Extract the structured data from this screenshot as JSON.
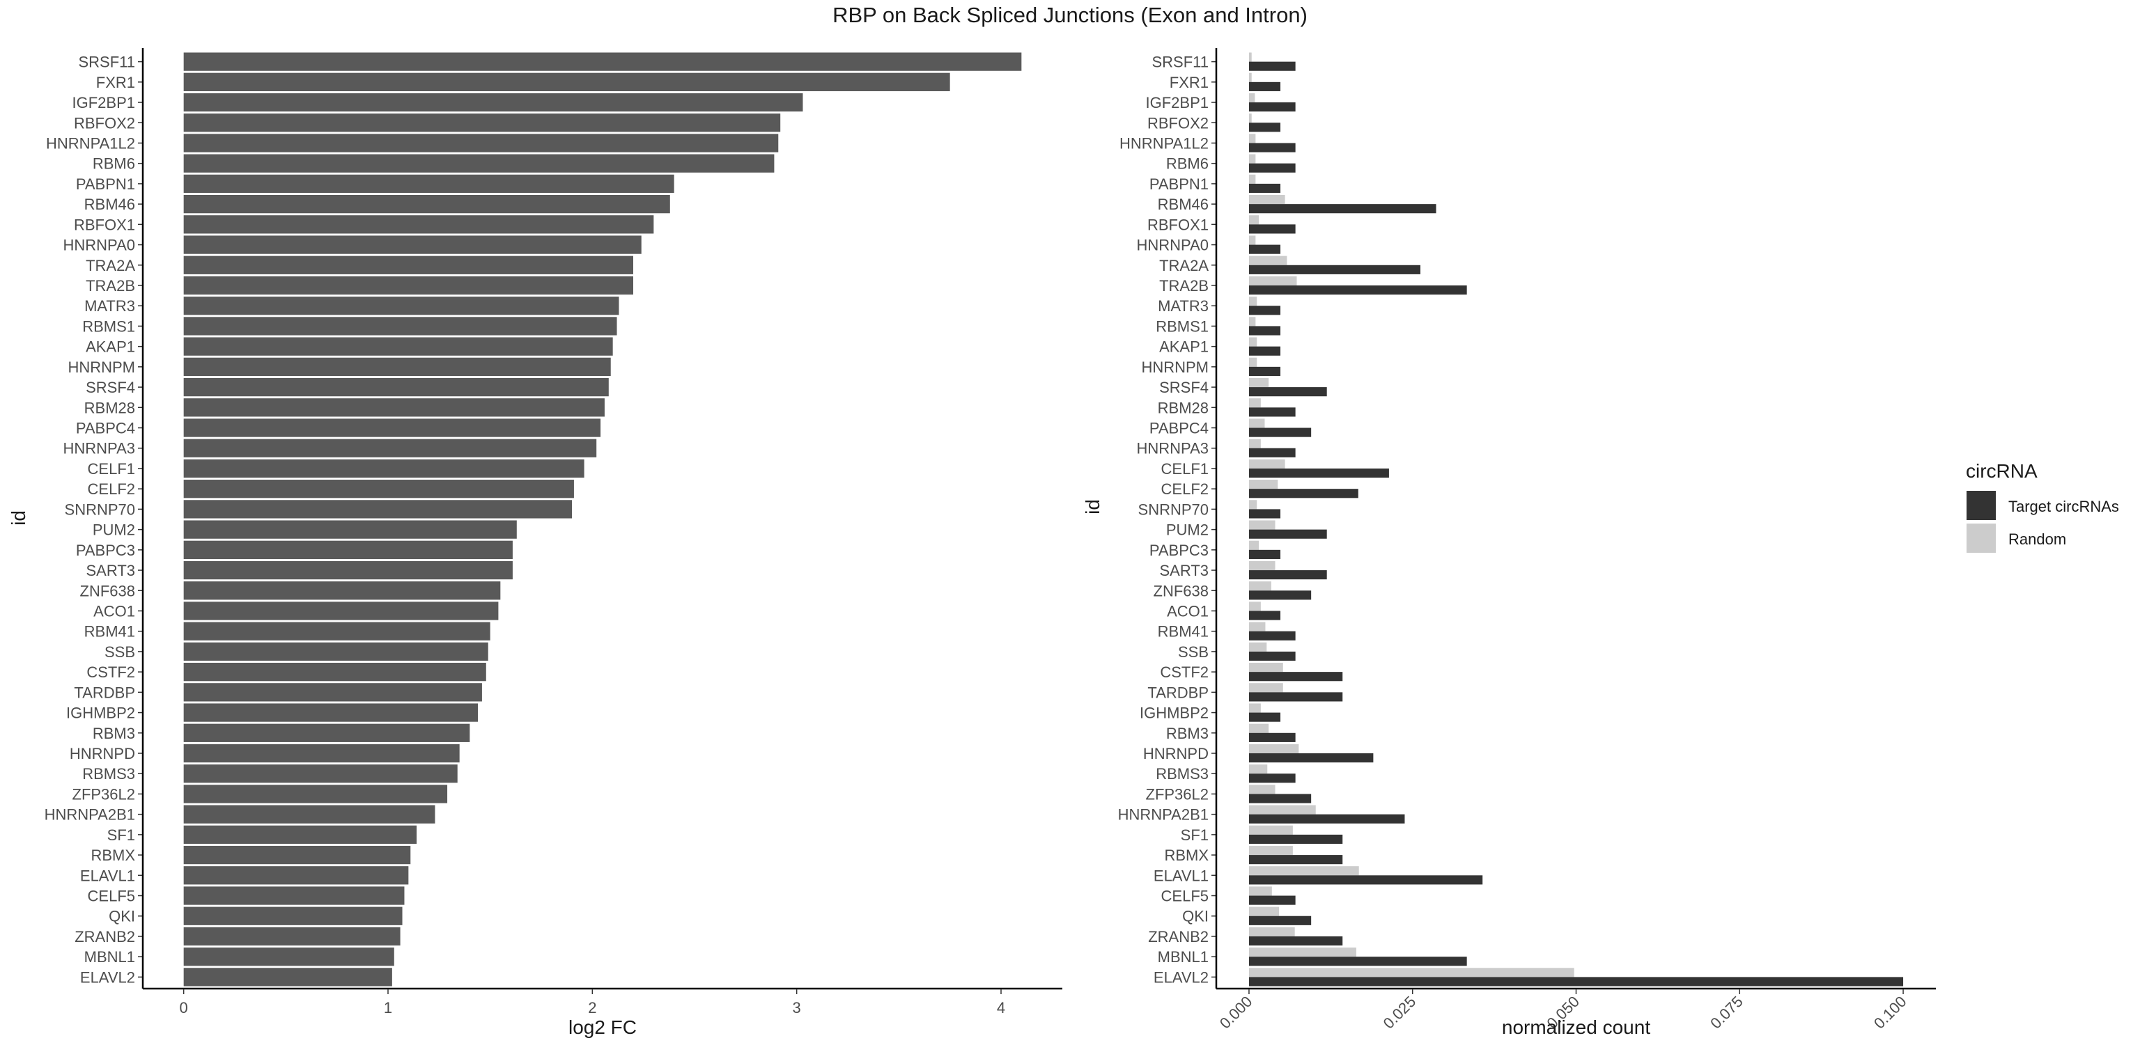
{
  "title": "RBP on Back Spliced Junctions (Exon and Intron)",
  "colors": {
    "bar_left": "#595959",
    "target": "#333333",
    "random": "#cccccc",
    "axis": "#000000",
    "text": "#4d4d4d"
  },
  "chart_data": [
    {
      "type": "bar",
      "orientation": "horizontal",
      "xlabel": "log2 FC",
      "ylabel": "id",
      "xlim": [
        -0.2,
        4.3
      ],
      "xticks": [
        "0",
        "1",
        "2",
        "3",
        "4"
      ],
      "categories": [
        "SRSF11",
        "FXR1",
        "IGF2BP1",
        "RBFOX2",
        "HNRNPA1L2",
        "RBM6",
        "PABPN1",
        "RBM46",
        "RBFOX1",
        "HNRNPA0",
        "TRA2A",
        "TRA2B",
        "MATR3",
        "RBMS1",
        "AKAP1",
        "HNRNPM",
        "SRSF4",
        "RBM28",
        "PABPC4",
        "HNRNPA3",
        "CELF1",
        "CELF2",
        "SNRNP70",
        "PUM2",
        "PABPC3",
        "SART3",
        "ZNF638",
        "ACO1",
        "RBM41",
        "SSB",
        "CSTF2",
        "TARDBP",
        "IGHMBP2",
        "RBM3",
        "HNRNPD",
        "RBMS3",
        "ZFP36L2",
        "HNRNPA2B1",
        "SF1",
        "RBMX",
        "ELAVL1",
        "CELF5",
        "QKI",
        "ZRANB2",
        "MBNL1",
        "ELAVL2"
      ],
      "values": [
        4.1,
        3.75,
        3.03,
        2.92,
        2.91,
        2.89,
        2.4,
        2.38,
        2.3,
        2.24,
        2.2,
        2.2,
        2.13,
        2.12,
        2.1,
        2.09,
        2.08,
        2.06,
        2.04,
        2.02,
        1.96,
        1.91,
        1.9,
        1.63,
        1.61,
        1.61,
        1.55,
        1.54,
        1.5,
        1.49,
        1.48,
        1.46,
        1.44,
        1.4,
        1.35,
        1.34,
        1.29,
        1.23,
        1.14,
        1.11,
        1.1,
        1.08,
        1.07,
        1.06,
        1.03,
        1.02
      ]
    },
    {
      "type": "bar",
      "orientation": "horizontal",
      "xlabel": "normalized count",
      "ylabel": "id",
      "xlim": [
        -0.005,
        0.105
      ],
      "xticks": [
        "0.000",
        "0.025",
        "0.050",
        "0.075",
        "0.100"
      ],
      "categories": [
        "SRSF11",
        "FXR1",
        "IGF2BP1",
        "RBFOX2",
        "HNRNPA1L2",
        "RBM6",
        "PABPN1",
        "RBM46",
        "RBFOX1",
        "HNRNPA0",
        "TRA2A",
        "TRA2B",
        "MATR3",
        "RBMS1",
        "AKAP1",
        "HNRNPM",
        "SRSF4",
        "RBM28",
        "PABPC4",
        "HNRNPA3",
        "CELF1",
        "CELF2",
        "SNRNP70",
        "PUM2",
        "PABPC3",
        "SART3",
        "ZNF638",
        "ACO1",
        "RBM41",
        "SSB",
        "CSTF2",
        "TARDBP",
        "IGHMBP2",
        "RBM3",
        "HNRNPD",
        "RBMS3",
        "ZFP36L2",
        "HNRNPA2B1",
        "SF1",
        "RBMX",
        "ELAVL1",
        "CELF5",
        "QKI",
        "ZRANB2",
        "MBNL1",
        "ELAVL2"
      ],
      "legend_title": "circRNA",
      "legend_position": "right",
      "series": [
        {
          "name": "Target circRNAs",
          "color": "#333333",
          "values": [
            0.0071,
            0.0048,
            0.0071,
            0.0048,
            0.0071,
            0.0071,
            0.0048,
            0.0286,
            0.0071,
            0.0048,
            0.0262,
            0.0333,
            0.0048,
            0.0048,
            0.0048,
            0.0048,
            0.0119,
            0.0071,
            0.0095,
            0.0071,
            0.0214,
            0.0167,
            0.0048,
            0.0119,
            0.0048,
            0.0119,
            0.0095,
            0.0048,
            0.0071,
            0.0071,
            0.0143,
            0.0143,
            0.0048,
            0.0071,
            0.019,
            0.0071,
            0.0095,
            0.0238,
            0.0143,
            0.0143,
            0.0357,
            0.0071,
            0.0095,
            0.0143,
            0.0333,
            0.1
          ]
        },
        {
          "name": "Random",
          "color": "#cccccc",
          "values": [
            0.0004,
            0.0004,
            0.0009,
            0.0004,
            0.001,
            0.001,
            0.001,
            0.0055,
            0.0015,
            0.001,
            0.0058,
            0.0073,
            0.0012,
            0.001,
            0.0012,
            0.0012,
            0.003,
            0.0018,
            0.0024,
            0.0018,
            0.0055,
            0.0044,
            0.0012,
            0.004,
            0.0015,
            0.004,
            0.0034,
            0.0018,
            0.0025,
            0.0027,
            0.0052,
            0.0052,
            0.0018,
            0.003,
            0.0076,
            0.0028,
            0.004,
            0.0102,
            0.0067,
            0.0067,
            0.0168,
            0.0035,
            0.0046,
            0.007,
            0.0164,
            0.0497
          ]
        }
      ]
    }
  ]
}
